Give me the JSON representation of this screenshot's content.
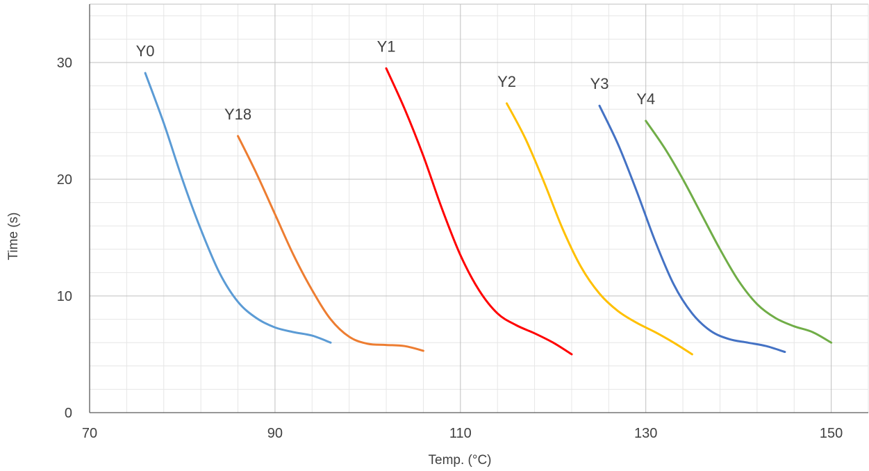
{
  "chart_data": {
    "type": "line",
    "title": "",
    "xlabel": "Temp. (°C)",
    "ylabel": "Time (s)",
    "xlim": [
      70,
      154
    ],
    "ylim": [
      0,
      35
    ],
    "x_ticks": [
      70,
      90,
      110,
      130,
      150
    ],
    "y_ticks": [
      0,
      10,
      20,
      30
    ],
    "grid": true,
    "minor_grid": true,
    "legend": "none",
    "series": [
      {
        "name": "Y0",
        "color": "#5B9BD5",
        "points": [
          [
            76,
            29.1
          ],
          [
            78,
            24.8
          ],
          [
            80,
            20.0
          ],
          [
            82,
            15.7
          ],
          [
            84,
            12.0
          ],
          [
            86,
            9.5
          ],
          [
            88,
            8.1
          ],
          [
            90,
            7.3
          ],
          [
            92,
            6.9
          ],
          [
            94,
            6.6
          ],
          [
            96,
            6.0
          ]
        ]
      },
      {
        "name": "Y18",
        "color": "#ED7D31",
        "points": [
          [
            86,
            23.7
          ],
          [
            88,
            20.5
          ],
          [
            90,
            17.0
          ],
          [
            92,
            13.5
          ],
          [
            94,
            10.5
          ],
          [
            96,
            8.0
          ],
          [
            98,
            6.5
          ],
          [
            100,
            5.9
          ],
          [
            102,
            5.8
          ],
          [
            104,
            5.7
          ],
          [
            106,
            5.3
          ]
        ]
      },
      {
        "name": "Y1",
        "color": "#FF0000",
        "points": [
          [
            102,
            29.5
          ],
          [
            104,
            26.0
          ],
          [
            106,
            22.0
          ],
          [
            108,
            17.5
          ],
          [
            110,
            13.5
          ],
          [
            112,
            10.5
          ],
          [
            114,
            8.5
          ],
          [
            116,
            7.5
          ],
          [
            118,
            6.8
          ],
          [
            120,
            6.0
          ],
          [
            122,
            5.0
          ]
        ]
      },
      {
        "name": "Y2",
        "color": "#FFC000",
        "points": [
          [
            115,
            26.5
          ],
          [
            117,
            23.5
          ],
          [
            119,
            19.8
          ],
          [
            121,
            15.8
          ],
          [
            123,
            12.5
          ],
          [
            125,
            10.2
          ],
          [
            127,
            8.7
          ],
          [
            129,
            7.7
          ],
          [
            131,
            6.9
          ],
          [
            133,
            6.0
          ],
          [
            135,
            5.0
          ]
        ]
      },
      {
        "name": "Y3",
        "color": "#4472C4",
        "points": [
          [
            125,
            26.3
          ],
          [
            127,
            23.0
          ],
          [
            129,
            19.0
          ],
          [
            131,
            14.7
          ],
          [
            133,
            11.0
          ],
          [
            135,
            8.5
          ],
          [
            137,
            7.0
          ],
          [
            139,
            6.3
          ],
          [
            141,
            6.0
          ],
          [
            143,
            5.7
          ],
          [
            145,
            5.2
          ]
        ]
      },
      {
        "name": "Y4",
        "color": "#70AD47",
        "points": [
          [
            130,
            25.0
          ],
          [
            132,
            22.7
          ],
          [
            134,
            20.0
          ],
          [
            136,
            17.0
          ],
          [
            138,
            14.0
          ],
          [
            140,
            11.3
          ],
          [
            142,
            9.3
          ],
          [
            144,
            8.1
          ],
          [
            146,
            7.4
          ],
          [
            148,
            6.9
          ],
          [
            150,
            6.0
          ]
        ]
      }
    ]
  }
}
